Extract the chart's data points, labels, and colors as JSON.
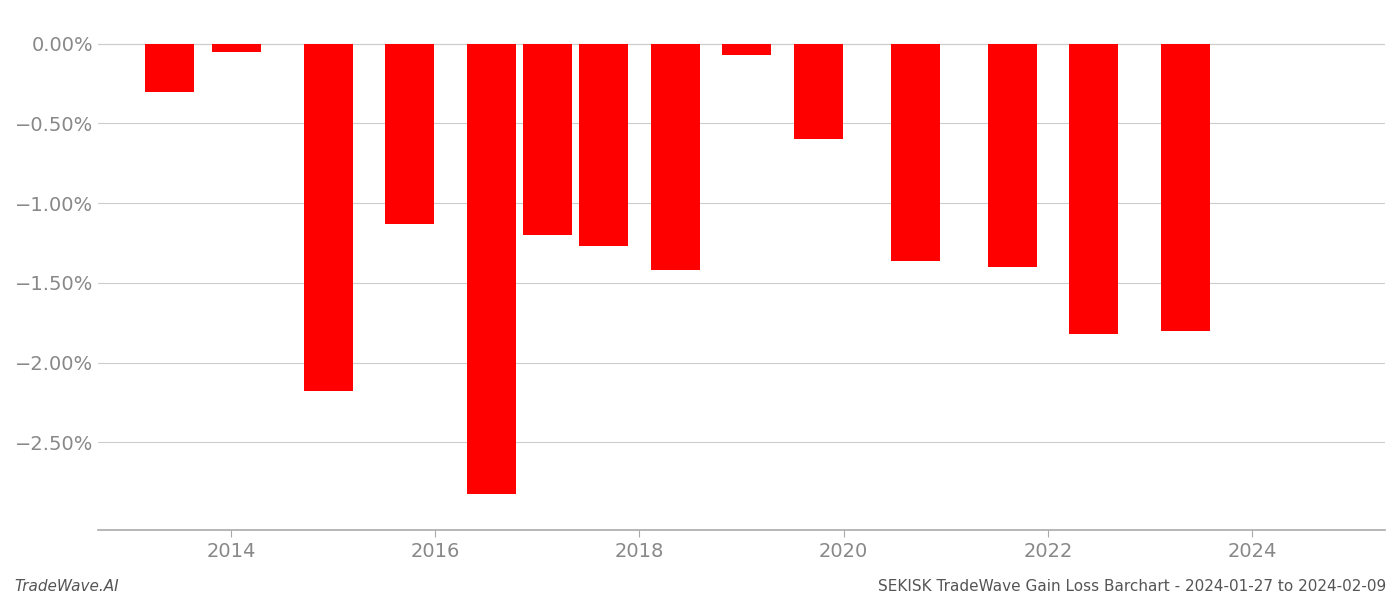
{
  "x_positions": [
    2013.4,
    2014.05,
    2014.95,
    2015.75,
    2016.55,
    2017.1,
    2017.65,
    2018.35,
    2019.05,
    2019.75,
    2020.7,
    2021.65,
    2022.45,
    2023.35
  ],
  "values": [
    -0.3,
    -0.055,
    -2.18,
    -1.13,
    -2.82,
    -1.2,
    -1.27,
    -1.42,
    -0.07,
    -0.6,
    -1.36,
    -1.4,
    -1.82,
    -1.8
  ],
  "bar_color": "#ff0000",
  "bar_width": 0.48,
  "footer_left": "TradeWave.AI",
  "footer_right": "SEKISK TradeWave Gain Loss Barchart - 2024-01-27 to 2024-02-09",
  "xlim": [
    2012.7,
    2025.3
  ],
  "ylim": [
    -3.05,
    0.18
  ],
  "yticks": [
    0.0,
    -0.5,
    -1.0,
    -1.5,
    -2.0,
    -2.5
  ],
  "ytick_labels": [
    "0.00%",
    "−0.50%",
    "−1.00%",
    "−1.50%",
    "−2.00%",
    "−2.50%"
  ],
  "xticks": [
    2014,
    2016,
    2018,
    2020,
    2022,
    2024
  ],
  "background_color": "#ffffff",
  "grid_color": "#cccccc",
  "tick_color": "#888888",
  "footer_fontsize": 11,
  "tick_fontsize": 14
}
